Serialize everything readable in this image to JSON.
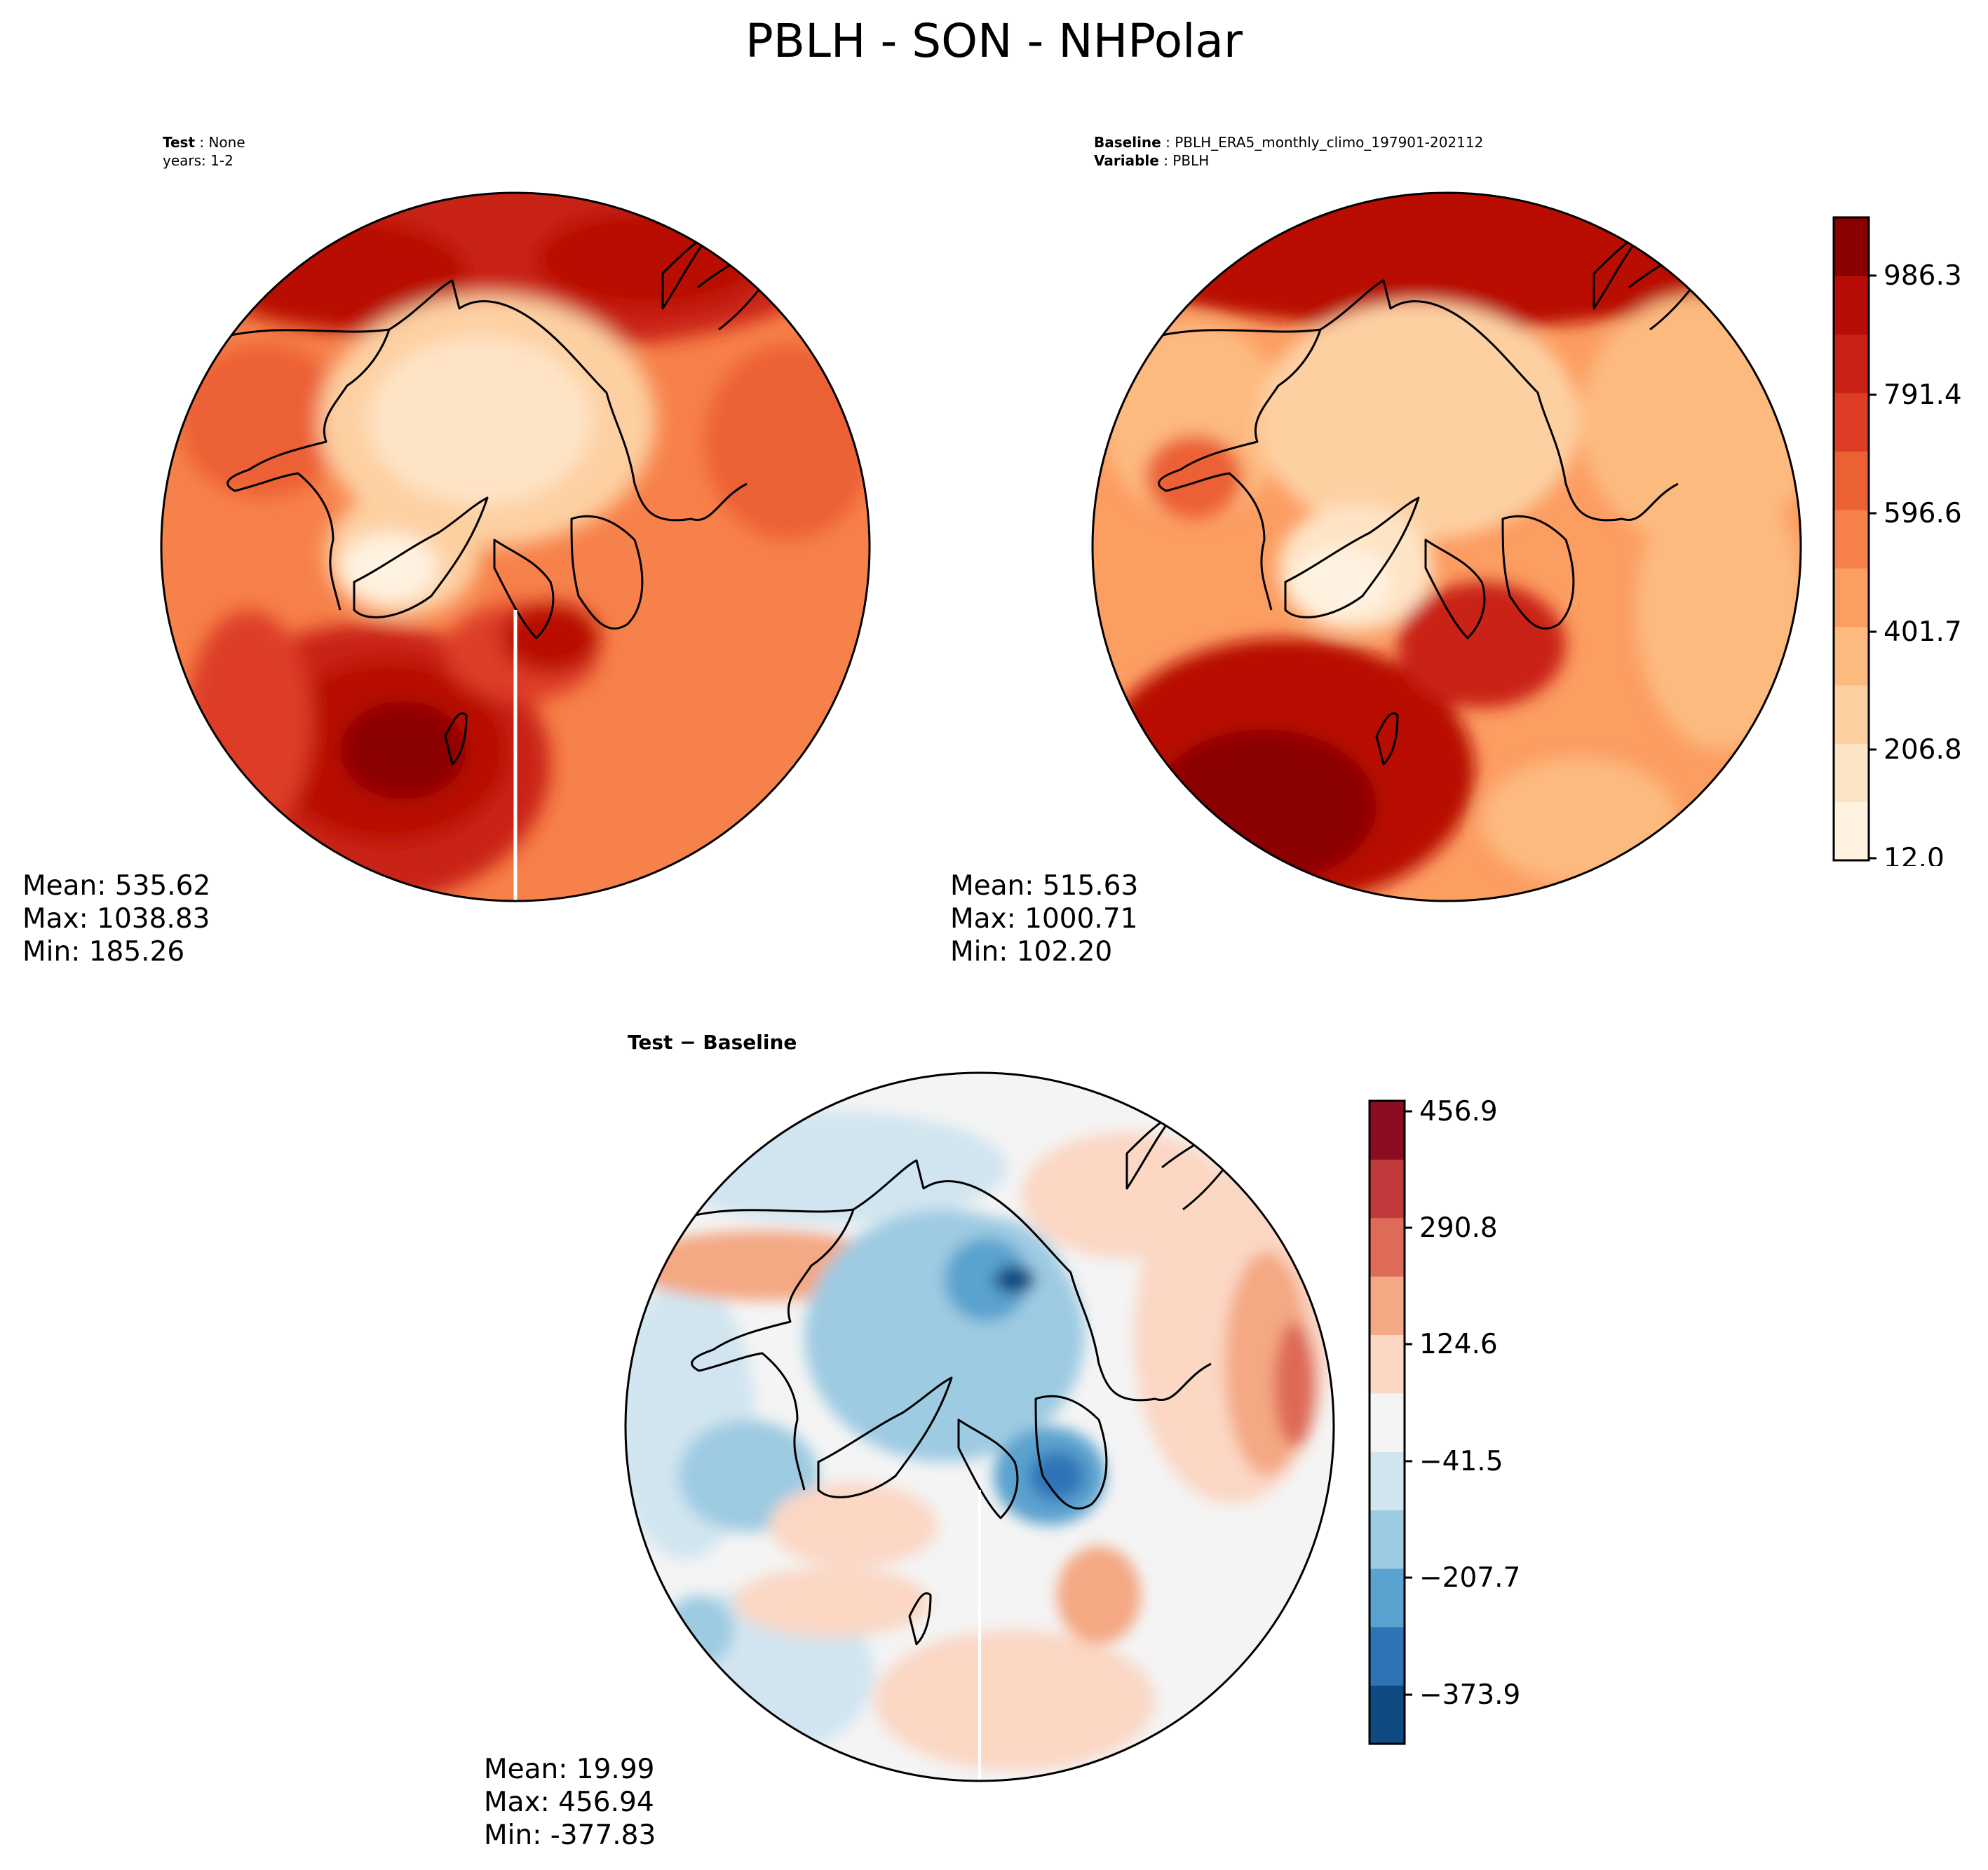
{
  "figure": {
    "title": "PBLH - SON - NHPolar"
  },
  "panels": {
    "test": {
      "label_bold": "Test",
      "label_value": "None",
      "years_line": "years: 1-2",
      "stats": {
        "mean": "Mean: 535.62",
        "max": "Max: 1038.83",
        "min": "Min: 185.26"
      }
    },
    "baseline": {
      "baseline_bold": "Baseline",
      "baseline_value": "PBLH_ERA5_monthly_climo_197901-202112",
      "variable_bold": "Variable",
      "variable_value": "PBLH",
      "stats": {
        "mean": "Mean: 515.63",
        "max": "Max: 1000.71",
        "min": "Min: 102.20"
      }
    },
    "difference": {
      "title": "Test − Baseline",
      "stats": {
        "mean": "Mean: 19.99",
        "max": "Max: 456.94",
        "min": "Min: -377.83"
      }
    }
  },
  "colorbars": {
    "absolute": {
      "colormap": "OrRd",
      "ticks": [
        "986.3",
        "791.4",
        "596.6",
        "401.7",
        "206.8",
        "12.0"
      ],
      "colors": [
        "#fff2e1",
        "#fee4c6",
        "#fdd0a2",
        "#fdba7f",
        "#fc9d62",
        "#f7814a",
        "#ec6134",
        "#dd3d25",
        "#c92113",
        "#b80c06",
        "#8b0000"
      ]
    },
    "difference": {
      "colormap": "RdBu_r",
      "ticks": [
        "456.9",
        "290.8",
        "124.6",
        "−41.5",
        "−207.7",
        "−373.9"
      ],
      "colors": [
        "#104a82",
        "#2d74b7",
        "#5aa2cf",
        "#9dcbe2",
        "#d1e5f0",
        "#f4f4f4",
        "#fbd7c4",
        "#f4a883",
        "#de6b57",
        "#c03a3c",
        "#8b0d23"
      ]
    }
  }
}
